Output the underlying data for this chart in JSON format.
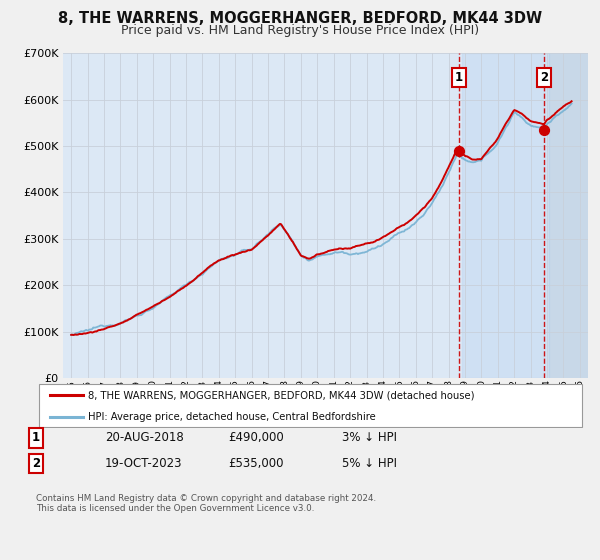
{
  "title": "8, THE WARRENS, MOGGERHANGER, BEDFORD, MK44 3DW",
  "subtitle": "Price paid vs. HM Land Registry's House Price Index (HPI)",
  "ylim": [
    0,
    700000
  ],
  "xlim": [
    1994.5,
    2026.5
  ],
  "yticks": [
    0,
    100000,
    200000,
    300000,
    400000,
    500000,
    600000,
    700000
  ],
  "ytick_labels": [
    "£0",
    "£100K",
    "£200K",
    "£300K",
    "£400K",
    "£500K",
    "£600K",
    "£700K"
  ],
  "xticks": [
    1995,
    1996,
    1997,
    1998,
    1999,
    2000,
    2001,
    2002,
    2003,
    2004,
    2005,
    2006,
    2007,
    2008,
    2009,
    2010,
    2011,
    2012,
    2013,
    2014,
    2015,
    2016,
    2017,
    2018,
    2019,
    2020,
    2021,
    2022,
    2023,
    2024,
    2025,
    2026
  ],
  "legend_labels": [
    "8, THE WARRENS, MOGGERHANGER, BEDFORD, MK44 3DW (detached house)",
    "HPI: Average price, detached house, Central Bedfordshire"
  ],
  "legend_colors": [
    "#cc0000",
    "#7ab4d4"
  ],
  "sale1_date": 2018.63,
  "sale1_price": 490000,
  "sale2_date": 2023.8,
  "sale2_price": 535000,
  "annotation1": [
    "1",
    "20-AUG-2018",
    "£490,000",
    "3% ↓ HPI"
  ],
  "annotation2": [
    "2",
    "19-OCT-2023",
    "£535,000",
    "5% ↓ HPI"
  ],
  "footer": "Contains HM Land Registry data © Crown copyright and database right 2024.\nThis data is licensed under the Open Government Licence v3.0.",
  "red_color": "#cc0000",
  "blue_color": "#7ab4d4",
  "bg_color": "#dce8f5",
  "hatch_color": "#c8d8e8",
  "title_fontsize": 10.5,
  "subtitle_fontsize": 9
}
